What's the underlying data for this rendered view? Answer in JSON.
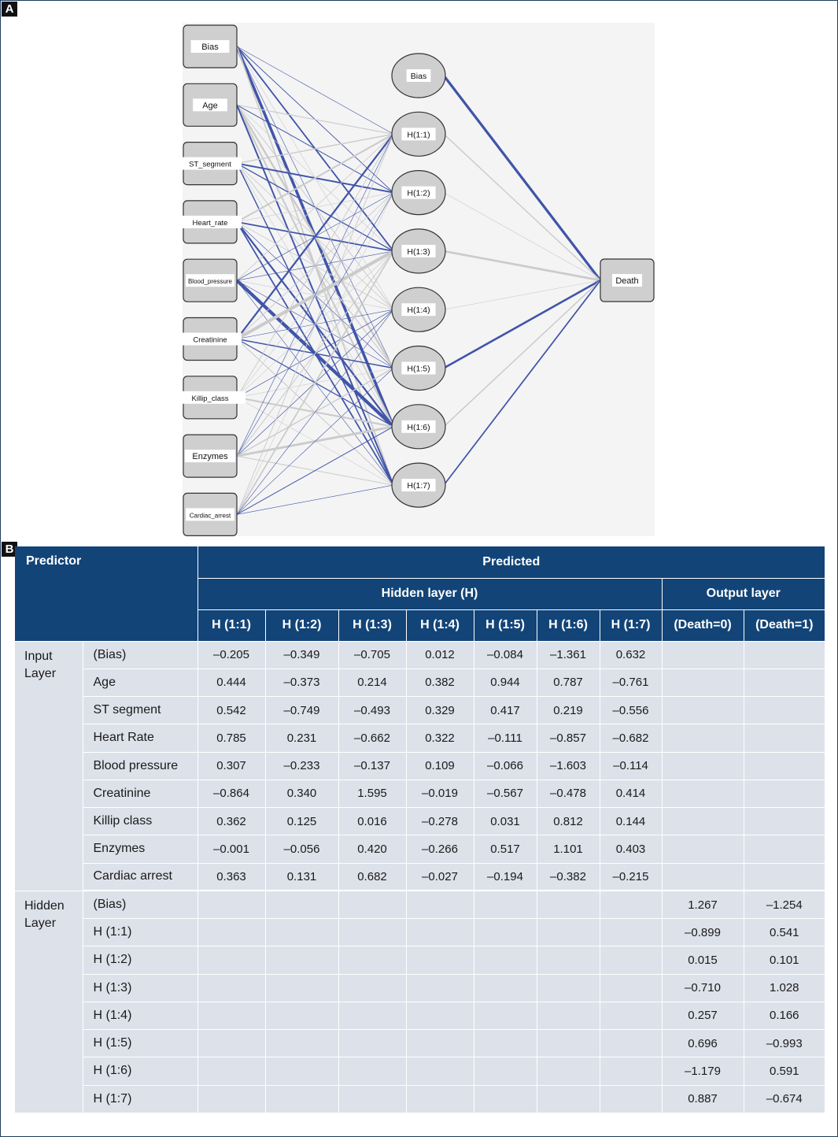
{
  "panel_a": {
    "tag": "A",
    "input_nodes": [
      "Bias",
      "Age",
      "ST_segment",
      "Heart_rate",
      "Blood_pressure",
      "Creatinine",
      "Killip_class",
      "Enzymes",
      "Cardiac_arrest"
    ],
    "hidden_nodes": [
      "Bias",
      "H(1:1)",
      "H(1:2)",
      "H(1:3)",
      "H(1:4)",
      "H(1:5)",
      "H(1:6)",
      "H(1:7)"
    ],
    "output_node": "Death",
    "colors": {
      "negative": "#4055a8",
      "positive": "#cbcbcb",
      "canvas": "#f4f4f4"
    }
  },
  "panel_b": {
    "tag": "B",
    "header": {
      "predictor": "Predictor",
      "predicted": "Predicted",
      "hidden_layer": "Hidden layer (H)",
      "output_layer": "Output layer",
      "columns": [
        "H (1:1)",
        "H (1:2)",
        "H (1:3)",
        "H (1:4)",
        "H (1:5)",
        "H (1:6)",
        "H (1:7)",
        "(Death=0)",
        "(Death=1)"
      ]
    },
    "input_group": "Input Layer",
    "input_rows": [
      {
        "name": "(Bias)",
        "values": [
          "–0.205",
          "–0.349",
          "–0.705",
          "0.012",
          "–0.084",
          "–1.361",
          "0.632",
          "",
          ""
        ]
      },
      {
        "name": "Age",
        "values": [
          "0.444",
          "–0.373",
          "0.214",
          "0.382",
          "0.944",
          "0.787",
          "–0.761",
          "",
          ""
        ]
      },
      {
        "name": "ST segment",
        "values": [
          "0.542",
          "–0.749",
          "–0.493",
          "0.329",
          "0.417",
          "0.219",
          "–0.556",
          "",
          ""
        ]
      },
      {
        "name": "Heart Rate",
        "values": [
          "0.785",
          "0.231",
          "–0.662",
          "0.322",
          "–0.111",
          "–0.857",
          "–0.682",
          "",
          ""
        ]
      },
      {
        "name": "Blood pressure",
        "values": [
          "0.307",
          "–0.233",
          "–0.137",
          "0.109",
          "–0.066",
          "–1.603",
          "–0.114",
          "",
          ""
        ]
      },
      {
        "name": "Creatinine",
        "values": [
          "–0.864",
          "0.340",
          "1.595",
          "–0.019",
          "–0.567",
          "–0.478",
          "0.414",
          "",
          ""
        ]
      },
      {
        "name": "Killip class",
        "values": [
          "0.362",
          "0.125",
          "0.016",
          "–0.278",
          "0.031",
          "0.812",
          "0.144",
          "",
          ""
        ]
      },
      {
        "name": "Enzymes",
        "values": [
          "–0.001",
          "–0.056",
          "0.420",
          "–0.266",
          "0.517",
          "1.101",
          "0.403",
          "",
          ""
        ]
      },
      {
        "name": "Cardiac arrest",
        "values": [
          "0.363",
          "0.131",
          "0.682",
          "–0.027",
          "–0.194",
          "–0.382",
          "–0.215",
          "",
          ""
        ]
      }
    ],
    "hidden_group": "Hidden Layer",
    "hidden_rows": [
      {
        "name": "(Bias)",
        "values": [
          "",
          "",
          "",
          "",
          "",
          "",
          "",
          "1.267",
          "–1.254"
        ]
      },
      {
        "name": "H (1:1)",
        "values": [
          "",
          "",
          "",
          "",
          "",
          "",
          "",
          "–0.899",
          "0.541"
        ]
      },
      {
        "name": "H (1:2)",
        "values": [
          "",
          "",
          "",
          "",
          "",
          "",
          "",
          "0.015",
          "0.101"
        ]
      },
      {
        "name": "H (1:3)",
        "values": [
          "",
          "",
          "",
          "",
          "",
          "",
          "",
          "–0.710",
          "1.028"
        ]
      },
      {
        "name": "H (1:4)",
        "values": [
          "",
          "",
          "",
          "",
          "",
          "",
          "",
          "0.257",
          "0.166"
        ]
      },
      {
        "name": "H (1:5)",
        "values": [
          "",
          "",
          "",
          "",
          "",
          "",
          "",
          "0.696",
          "–0.993"
        ]
      },
      {
        "name": "H (1:6)",
        "values": [
          "",
          "",
          "",
          "",
          "",
          "",
          "",
          "–1.179",
          "0.591"
        ]
      },
      {
        "name": "H (1:7)",
        "values": [
          "",
          "",
          "",
          "",
          "",
          "",
          "",
          "0.887",
          "–0.674"
        ]
      }
    ]
  }
}
